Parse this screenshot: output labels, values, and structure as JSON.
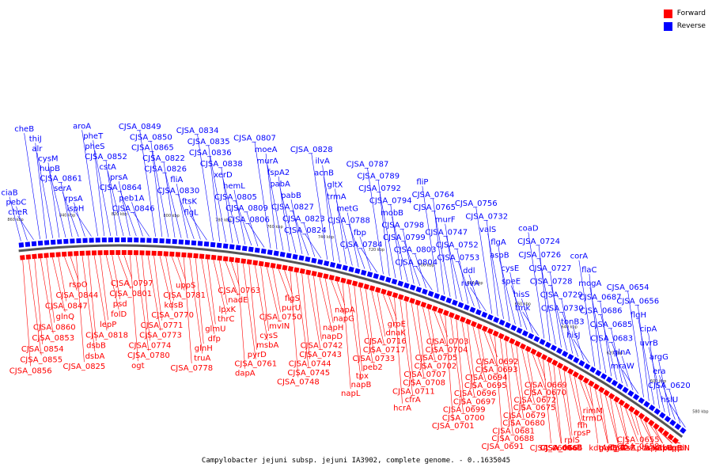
{
  "caption": "Campylobacter jejuni subsp. jejuni IA3902, complete genome. - 0..1635045",
  "legend": {
    "forward_label": "Forward",
    "reverse_label": "Reverse",
    "forward_color": "#ff0000",
    "reverse_color": "#0000ff"
  },
  "colors": {
    "forward": "#ff0000",
    "reverse": "#0000ff",
    "backbone": "#555555"
  },
  "ticks": [
    "580 kbp",
    "600 kbp",
    "620 kbp",
    "640 kbp",
    "660 kbp",
    "680 kbp",
    "700 kbp",
    "720 kbp",
    "740 kbp",
    "760 kbp",
    "780 kbp",
    "800 kbp",
    "820 kbp",
    "840 kbp",
    "860 kbp"
  ],
  "reverse_genes": [
    "hslU",
    "CJSA_0620",
    "era",
    "argG",
    "uvrB",
    "cipA",
    "flgH",
    "CJSA_0656",
    "CJSA_0654",
    "mraW",
    "glnA",
    "CJSA_0683",
    "CJSA_0685",
    "CJSA_0686",
    "CJSA_0687",
    "mogA",
    "flaC",
    "corA",
    "hisJ",
    "tonB3",
    "CJSA_0730",
    "CJSA_0729",
    "CJSA_0728",
    "CJSA_0727",
    "CJSA_0726",
    "CJSA_0724",
    "coaD",
    "tmk",
    "hisS",
    "speE",
    "cysE",
    "aspB",
    "flgA",
    "valS",
    "CJSA_0732",
    "CJSA_0756",
    "ruvA",
    "ddl",
    "CJSA_0753",
    "CJSA_0752",
    "CJSA_0747",
    "murF",
    "CJSA_0765",
    "CJSA_0764",
    "fliP",
    "CJSA_0804",
    "CJSA_0803",
    "CJSA_0799",
    "CJSA_0798",
    "mobB",
    "CJSA_0794",
    "CJSA_0792",
    "CJSA_0789",
    "CJSA_0787",
    "CJSA_0784",
    "fbp",
    "CJSA_0788",
    "metG",
    "trmA",
    "gltX",
    "acnB",
    "ilvA",
    "CJSA_0828",
    "CJSA_0824",
    "CJSA_0823",
    "CJSA_0827",
    "pabB",
    "pabA",
    "fspA2",
    "murA",
    "moeA",
    "CJSA_0807",
    "CJSA_0806",
    "CJSA_0809",
    "CJSA_0805",
    "hemL",
    "xerD",
    "CJSA_0838",
    "CJSA_0836",
    "CJSA_0835",
    "CJSA_0834",
    "flgL",
    "ftsK",
    "CJSA_0830",
    "fliA",
    "CJSA_0826",
    "CJSA_0822",
    "CJSA_0865",
    "CJSA_0850",
    "CJSA_0849",
    "CJSA_0846",
    "peb1A",
    "CJSA_0864",
    "prsA",
    "cstA",
    "CJSA_0852",
    "pheS",
    "pheT",
    "aroA",
    "ispH",
    "rpsA",
    "serA",
    "CJSA_0861",
    "hupB",
    "cysM",
    "alr",
    "thiJ",
    "cheB",
    "cheR",
    "pebC",
    "ciaB"
  ],
  "forward_genes": [
    "rplI",
    "rpoN",
    "kdpB",
    "kdpC",
    "kdpB",
    "priA",
    "ispG",
    "ackA",
    "pta",
    "CJSA_0655",
    "CJSA_0658",
    "ftsA",
    "ftsZ",
    "flgG2",
    "flgG",
    "purE",
    "glyQ",
    "kdtA",
    "rimM",
    "trmD",
    "ffh",
    "rpsP",
    "rplS",
    "dnaE",
    "CJSA_0664",
    "CJSA_0665",
    "CJSA_0667",
    "CJSA_0669",
    "CJSA_0670",
    "CJSA_0672",
    "CJSA_0675",
    "CJSA_0679",
    "CJSA_0680",
    "CJSA_0681",
    "CJSA_0688",
    "CJSA_0691",
    "CJSA_0692",
    "CJSA_0693",
    "CJSA_0694",
    "CJSA_0695",
    "CJSA_0696",
    "CJSA_0697",
    "CJSA_0699",
    "CJSA_0700",
    "CJSA_0701",
    "CJSA_0703",
    "CJSA_0704",
    "CJSA_0705",
    "CJSA_0702",
    "CJSA_0707",
    "CJSA_0708",
    "CJSA_0711",
    "cfrA",
    "hcrA",
    "grpE",
    "dnaK",
    "CJSA_0716",
    "CJSA_0717",
    "CJSA_0733",
    "peb2",
    "tpx",
    "napB",
    "napL",
    "napA",
    "napG",
    "napH",
    "napD",
    "CJSA_0742",
    "CJSA_0743",
    "CJSA_0744",
    "CJSA_0745",
    "CJSA_0748",
    "flgS",
    "purU",
    "CJSA_0750",
    "mvIN",
    "cysS",
    "msbA",
    "pyrD",
    "CJSA_0761",
    "dapA",
    "CJSA_0763",
    "nadE",
    "lpxK",
    "thrC",
    "glmU",
    "dfp",
    "glnH",
    "truA",
    "CJSA_0778",
    "uppS",
    "CJSA_0781",
    "kdsB",
    "CJSA_0770",
    "CJSA_0771",
    "CJSA_0773",
    "CJSA_0774",
    "CJSA_0780",
    "ogt",
    "CJSA_0797",
    "CJSA_0801",
    "psd",
    "folD",
    "lepP",
    "CJSA_0818",
    "dsbB",
    "dsbA",
    "CJSA_0825",
    "rspO",
    "CJSA_0844",
    "CJSA_0847",
    "glnQ",
    "CJSA_0860",
    "CJSA_0853",
    "CJSA_0854",
    "CJSA_0855",
    "CJSA_0856"
  ]
}
